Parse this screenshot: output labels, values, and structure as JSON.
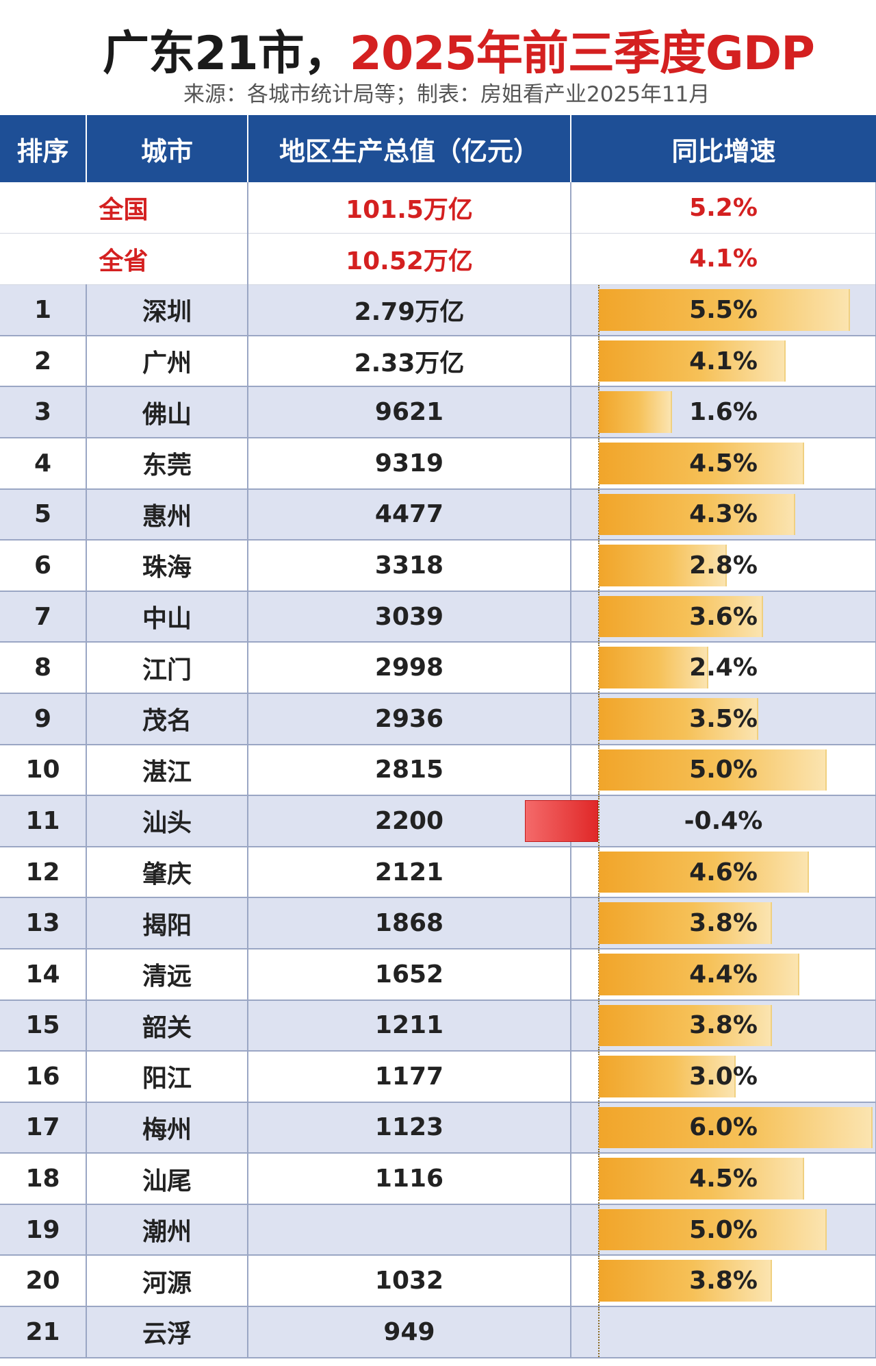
{
  "title": {
    "part1": "广东21市，",
    "part2": "2025年前三季度GDP"
  },
  "source": "来源：各城市统计局等；制表：房姐看产业2025年11月",
  "headers": {
    "rank": "排序",
    "city": "城市",
    "gdp": "地区生产总值（亿元）",
    "growth": "同比增速"
  },
  "summary": [
    {
      "name": "全国",
      "gdp": "101.5万亿",
      "growth": "5.2%"
    },
    {
      "name": "全省",
      "gdp": "10.52万亿",
      "growth": "4.1%"
    }
  ],
  "rows": [
    {
      "rank": "1",
      "city": "深圳",
      "gdp": "2.79万亿",
      "growth": "5.5%",
      "g": 5.5
    },
    {
      "rank": "2",
      "city": "广州",
      "gdp": "2.33万亿",
      "growth": "4.1%",
      "g": 4.1
    },
    {
      "rank": "3",
      "city": "佛山",
      "gdp": "9621",
      "growth": "1.6%",
      "g": 1.6
    },
    {
      "rank": "4",
      "city": "东莞",
      "gdp": "9319",
      "growth": "4.5%",
      "g": 4.5
    },
    {
      "rank": "5",
      "city": "惠州",
      "gdp": "4477",
      "growth": "4.3%",
      "g": 4.3
    },
    {
      "rank": "6",
      "city": "珠海",
      "gdp": "3318",
      "growth": "2.8%",
      "g": 2.8
    },
    {
      "rank": "7",
      "city": "中山",
      "gdp": "3039",
      "growth": "3.6%",
      "g": 3.6
    },
    {
      "rank": "8",
      "city": "江门",
      "gdp": "2998",
      "growth": "2.4%",
      "g": 2.4
    },
    {
      "rank": "9",
      "city": "茂名",
      "gdp": "2936",
      "growth": "3.5%",
      "g": 3.5
    },
    {
      "rank": "10",
      "city": "湛江",
      "gdp": "2815",
      "growth": "5.0%",
      "g": 5.0
    },
    {
      "rank": "11",
      "city": "汕头",
      "gdp": "2200",
      "growth": "-0.4%",
      "g": -0.4
    },
    {
      "rank": "12",
      "city": "肇庆",
      "gdp": "2121",
      "growth": "4.6%",
      "g": 4.6
    },
    {
      "rank": "13",
      "city": "揭阳",
      "gdp": "1868",
      "growth": "3.8%",
      "g": 3.8
    },
    {
      "rank": "14",
      "city": "清远",
      "gdp": "1652",
      "growth": "4.4%",
      "g": 4.4
    },
    {
      "rank": "15",
      "city": "韶关",
      "gdp": "1211",
      "growth": "3.8%",
      "g": 3.8
    },
    {
      "rank": "16",
      "city": "阳江",
      "gdp": "1177",
      "growth": "3.0%",
      "g": 3.0
    },
    {
      "rank": "17",
      "city": "梅州",
      "gdp": "1123",
      "growth": "6.0%",
      "g": 6.0
    },
    {
      "rank": "18",
      "city": "汕尾",
      "gdp": "1116",
      "growth": "4.5%",
      "g": 4.5
    },
    {
      "rank": "19",
      "city": "潮州",
      "gdp": "",
      "growth": "5.0%",
      "g": 5.0
    },
    {
      "rank": "20",
      "city": "河源",
      "gdp": "1032",
      "growth": "3.8%",
      "g": 3.8
    },
    {
      "rank": "21",
      "city": "云浮",
      "gdp": "949",
      "growth": "",
      "g": 0
    }
  ]
}
